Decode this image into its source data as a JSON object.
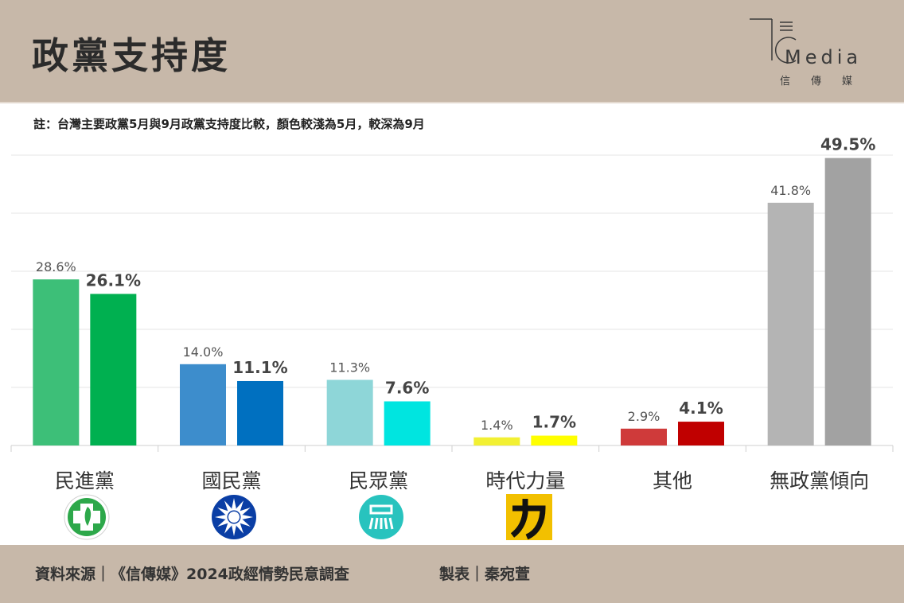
{
  "header": {
    "title": "政黨支持度",
    "logo_word": "Media",
    "logo_sub": "信傳媒"
  },
  "note": "註：台灣主要政黨5月與9月政黨支持度比較，顏色較淺為5月，較深為9月",
  "footer": {
    "source": "資料來源｜《信傳媒》2024政經情勢民意調查",
    "maker": "製表｜秦宛萱"
  },
  "chart_data": {
    "type": "bar",
    "categories": [
      "民進黨",
      "國民黨",
      "民眾黨",
      "時代力量",
      "其他",
      "無政黨傾向"
    ],
    "series": [
      {
        "name": "5月",
        "values": [
          28.6,
          14.0,
          11.3,
          1.4,
          2.9,
          41.8
        ]
      },
      {
        "name": "9月",
        "values": [
          26.1,
          11.1,
          7.6,
          1.7,
          4.1,
          49.5
        ]
      }
    ],
    "labels_may": [
      "28.6%",
      "14.0%",
      "11.3%",
      "1.4%",
      "2.9%",
      "41.8%"
    ],
    "labels_sep": [
      "26.1%",
      "11.1%",
      "7.6%",
      "1.7%",
      "4.1%",
      "49.5%"
    ],
    "colors_may": [
      "#3dbf78",
      "#3d8dcc",
      "#8ed6d8",
      "#f2f033",
      "#cf3a3a",
      "#b4b4b4"
    ],
    "colors_sep": [
      "#00b050",
      "#0070c0",
      "#00e5e0",
      "#ffff00",
      "#c00000",
      "#a2a2a2"
    ],
    "ylim": [
      0,
      50
    ],
    "grid": true,
    "xlabel": "",
    "ylabel": ""
  }
}
